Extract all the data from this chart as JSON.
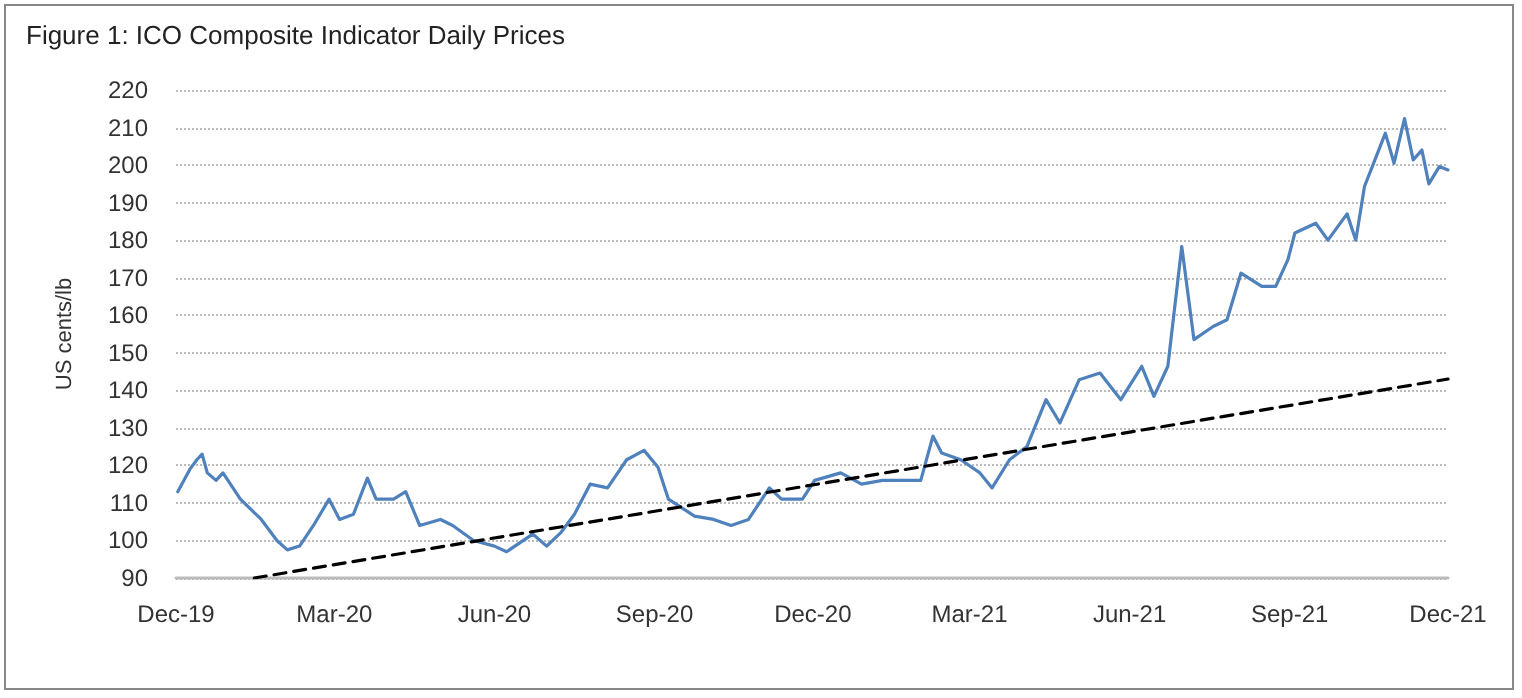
{
  "chart_data": {
    "type": "line",
    "title": "Figure 1: ICO Composite Indicator Daily Prices",
    "ylabel": "US cents/lb",
    "xlim": [
      "2019-12-01",
      "2021-12-01"
    ],
    "xticks": [
      {
        "value": "2019-12-01",
        "label": "Dec-19"
      },
      {
        "value": "2020-03-01",
        "label": "Mar-20"
      },
      {
        "value": "2020-06-01",
        "label": "Jun-20"
      },
      {
        "value": "2020-09-01",
        "label": "Sep-20"
      },
      {
        "value": "2020-12-01",
        "label": "Dec-20"
      },
      {
        "value": "2021-03-01",
        "label": "Mar-21"
      },
      {
        "value": "2021-06-01",
        "label": "Jun-21"
      },
      {
        "value": "2021-09-01",
        "label": "Sep-21"
      },
      {
        "value": "2021-12-01",
        "label": "Dec-21"
      }
    ],
    "ylim": [
      90,
      220
    ],
    "yticks": [
      90,
      100,
      110,
      120,
      130,
      140,
      150,
      160,
      170,
      180,
      190,
      200,
      210,
      220
    ],
    "grid": "y",
    "marker": "none",
    "series": [
      {
        "color": "#4f81bd",
        "line_style": "solid",
        "x": [
          "2019-12-02",
          "2019-12-09",
          "2019-12-13",
          "2019-12-16",
          "2019-12-19",
          "2019-12-24",
          "2019-12-28",
          "2020-01-07",
          "2020-01-19",
          "2020-01-28",
          "2020-02-03",
          "2020-02-10",
          "2020-02-18",
          "2020-02-27",
          "2020-03-04",
          "2020-03-12",
          "2020-03-20",
          "2020-03-25",
          "2020-04-04",
          "2020-04-11",
          "2020-04-19",
          "2020-05-01",
          "2020-05-08",
          "2020-05-20",
          "2020-06-01",
          "2020-06-08",
          "2020-06-23",
          "2020-07-01",
          "2020-07-09",
          "2020-07-17",
          "2020-07-26",
          "2020-08-05",
          "2020-08-16",
          "2020-08-26",
          "2020-09-03",
          "2020-09-09",
          "2020-09-24",
          "2020-10-05",
          "2020-10-15",
          "2020-10-25",
          "2020-11-06",
          "2020-11-13",
          "2020-11-25",
          "2020-12-02",
          "2020-12-17",
          "2020-12-29",
          "2021-01-10",
          "2021-01-21",
          "2021-02-01",
          "2021-02-08",
          "2021-02-13",
          "2021-02-24",
          "2021-03-07",
          "2021-03-14",
          "2021-03-24",
          "2021-04-03",
          "2021-04-14",
          "2021-04-22",
          "2021-05-03",
          "2021-05-15",
          "2021-05-27",
          "2021-06-08",
          "2021-06-15",
          "2021-06-23",
          "2021-07-01",
          "2021-07-08",
          "2021-07-19",
          "2021-07-27",
          "2021-08-04",
          "2021-08-16",
          "2021-08-24",
          "2021-08-31",
          "2021-09-04",
          "2021-09-16",
          "2021-09-23",
          "2021-10-04",
          "2021-10-09",
          "2021-10-14",
          "2021-10-20",
          "2021-10-26",
          "2021-10-31",
          "2021-11-06",
          "2021-11-11",
          "2021-11-16",
          "2021-11-20",
          "2021-11-26",
          "2021-12-01"
        ],
        "values": [
          113,
          119,
          121.5,
          123,
          118,
          116,
          118,
          111,
          105.6,
          100,
          97.5,
          98.5,
          104,
          111,
          105.6,
          107,
          116.6,
          111,
          111,
          113,
          104,
          105.6,
          104,
          100,
          98.5,
          97,
          101.7,
          98.5,
          102,
          107,
          115,
          114,
          121.5,
          124,
          119.5,
          111,
          106.5,
          105.6,
          104,
          105.6,
          114,
          111,
          111,
          116,
          118,
          115,
          116,
          116,
          116,
          127.8,
          123.3,
          121.5,
          118,
          114,
          121.5,
          125,
          137.5,
          131.3,
          142.8,
          144.6,
          137.5,
          146.4,
          138.4,
          146.4,
          178.3,
          153.5,
          157,
          158.8,
          171.2,
          167.7,
          167.7,
          174.8,
          181.9,
          184.5,
          180,
          187,
          180,
          194.3,
          201.4,
          208.5,
          200.5,
          212.4,
          201.4,
          204,
          195,
          199.6,
          198.7
        ]
      },
      {
        "type": "line",
        "color": "#000000",
        "line_style": "dashed",
        "x": [
          "2020-01-15",
          "2021-12-01"
        ],
        "values": [
          90,
          143
        ]
      }
    ]
  }
}
